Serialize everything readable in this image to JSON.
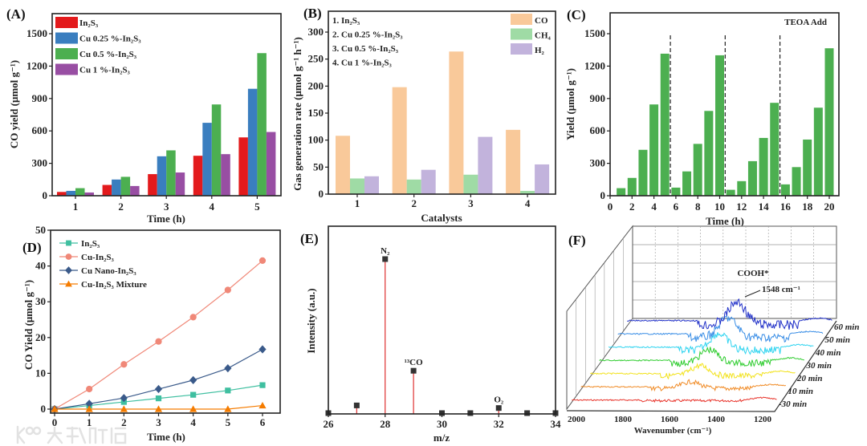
{
  "watermark": "大数跨境",
  "chart_data": [
    {
      "panel": "(A)",
      "type": "bar",
      "xlabel": "Time (h)",
      "ylabel": "CO yield (μmol g⁻¹)",
      "categories": [
        "1",
        "2",
        "3",
        "4",
        "5"
      ],
      "yticks": [
        "0",
        "300",
        "600",
        "900",
        "1200",
        "1500"
      ],
      "ylim": [
        0,
        1680
      ],
      "legend_position": "top-left",
      "series": [
        {
          "name": "In₂S₃",
          "color": "#e31a1c",
          "values": [
            35,
            100,
            200,
            370,
            540
          ]
        },
        {
          "name": "Cu 0.25 %-In₂S₃",
          "color": "#3a7ebf",
          "values": [
            45,
            150,
            365,
            675,
            990
          ]
        },
        {
          "name": "Cu 0.5 %-In₂S₃",
          "color": "#4caf50",
          "values": [
            70,
            175,
            420,
            845,
            1320
          ]
        },
        {
          "name": "Cu 1 %-In₂S₃",
          "color": "#984ea3",
          "values": [
            30,
            90,
            215,
            385,
            590
          ]
        }
      ]
    },
    {
      "panel": "(B)",
      "type": "bar",
      "xlabel": "Catalysts",
      "ylabel": "Gas generation rate (μmol g⁻¹ h⁻¹)",
      "categories": [
        "1",
        "2",
        "3",
        "4"
      ],
      "category_notes": [
        "1. In₂S₃",
        "2. Cu 0.25 %-In₂S₃",
        "3. Cu 0.5 %-In₂S₃",
        "4. Cu 1 %-In₂S₃"
      ],
      "yticks": [
        "0",
        "50",
        "100",
        "150",
        "200",
        "250",
        "300"
      ],
      "ylim": [
        0,
        340
      ],
      "legend_position": "top-right",
      "series": [
        {
          "name": "CO",
          "color": "#f9c99a",
          "values": [
            108,
            198,
            264,
            119
          ]
        },
        {
          "name": "CH₄",
          "color": "#9fdba5",
          "values": [
            29,
            27,
            36,
            6
          ]
        },
        {
          "name": "H₂",
          "color": "#c2b3dc",
          "values": [
            33,
            45,
            106,
            55
          ]
        }
      ]
    },
    {
      "panel": "(C)",
      "type": "bar",
      "xlabel": "Time (h)",
      "ylabel": "Yield (μmol g⁻¹)",
      "annotation": "TEOA Add",
      "color": "#4caf50",
      "x": [
        1,
        2,
        3,
        4,
        5,
        6,
        7,
        8,
        9,
        10,
        11,
        12,
        13,
        14,
        15,
        16,
        17,
        18,
        19,
        20
      ],
      "values": [
        70,
        165,
        425,
        845,
        1315,
        75,
        225,
        480,
        785,
        1300,
        55,
        135,
        320,
        535,
        860,
        105,
        265,
        520,
        815,
        1365
      ],
      "dashed_lines_at": [
        5.5,
        10.5,
        15.5
      ],
      "xticks": [
        "0",
        "2",
        "4",
        "6",
        "8",
        "10",
        "12",
        "14",
        "16",
        "18",
        "20"
      ],
      "yticks": [
        "0",
        "300",
        "600",
        "900",
        "1200",
        "1500"
      ],
      "xlim": [
        0,
        20.8
      ],
      "ylim": [
        0,
        1680
      ]
    },
    {
      "panel": "(D)",
      "type": "line",
      "xlabel": "Time (h)",
      "ylabel": "CO Yield (μmol g⁻¹)",
      "x": [
        0,
        1,
        2,
        3,
        4,
        5,
        6
      ],
      "xticks": [
        "0",
        "1",
        "2",
        "3",
        "4",
        "5",
        "6"
      ],
      "yticks": [
        "0",
        "10",
        "20",
        "30",
        "40",
        "50"
      ],
      "xlim": [
        -0.1,
        6.5
      ],
      "ylim": [
        -1.5,
        50
      ],
      "legend_position": "top-left",
      "series": [
        {
          "name": "In₂S₃",
          "color": "#3fbfa0",
          "marker": "square",
          "values": [
            0,
            1.0,
            2.0,
            3.0,
            4.0,
            5.2,
            6.7
          ]
        },
        {
          "name": "Cu-In₂S₃",
          "color": "#f08878",
          "marker": "circle",
          "values": [
            0,
            5.6,
            12.5,
            18.9,
            25.7,
            33.3,
            41.5
          ]
        },
        {
          "name": "Cu Nano-In₂S₃",
          "color": "#3a5a8a",
          "marker": "diamond",
          "values": [
            0,
            1.5,
            3.1,
            5.6,
            8.1,
            11.4,
            16.7
          ]
        },
        {
          "name": "Cu-In₂S₃ Mixture",
          "color": "#f57c00",
          "marker": "triangle",
          "values": [
            0,
            0,
            0,
            0,
            0,
            0,
            1.0
          ]
        }
      ]
    },
    {
      "panel": "(E)",
      "type": "scatter",
      "xlabel": "m/z",
      "ylabel": "Intensity (a.u.)",
      "x": [
        26,
        27,
        28,
        29,
        30,
        31,
        32,
        33,
        34
      ],
      "values": [
        0,
        0.05,
        1.0,
        0.275,
        0,
        0,
        0.033,
        0,
        0
      ],
      "stem_color": "#e04040",
      "peak_labels": [
        {
          "x": 28,
          "label": "N₂"
        },
        {
          "x": 29,
          "label": "¹³CO"
        },
        {
          "x": 32,
          "label": "O₂"
        }
      ],
      "xticks": [
        "26",
        "28",
        "30",
        "32",
        "34"
      ],
      "xlim": [
        26,
        34
      ],
      "ylim": [
        0,
        1.21
      ]
    },
    {
      "panel": "(F)",
      "type": "line",
      "subtype": "3d-waterfall",
      "xlabel": "Wavenumber (cm⁻¹)",
      "xticks": [
        "2000",
        "1800",
        "1600",
        "1400",
        "1200"
      ],
      "xlim": [
        2040,
        1140
      ],
      "annotation": "COOH*",
      "peak_label": "1548 cm⁻¹",
      "peak_position": 1548,
      "series": [
        {
          "name": "-30 min",
          "color": "#e8332a",
          "relative_peak": 0
        },
        {
          "name": "10 min",
          "color": "#f08a24",
          "relative_peak": 0.3
        },
        {
          "name": "20 min",
          "color": "#f2e21b",
          "relative_peak": 0.45
        },
        {
          "name": "30 min",
          "color": "#2ecc2e",
          "relative_peak": 0.6
        },
        {
          "name": "40 min",
          "color": "#2fd4f0",
          "relative_peak": 0.75
        },
        {
          "name": "50 min",
          "color": "#3a8ee6",
          "relative_peak": 0.88
        },
        {
          "name": "60 min",
          "color": "#2030c8",
          "relative_peak": 1.0
        }
      ]
    }
  ]
}
